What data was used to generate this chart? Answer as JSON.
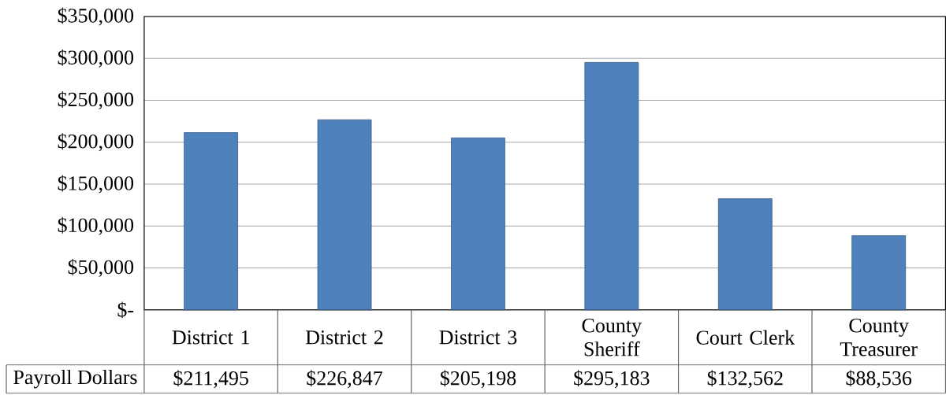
{
  "chart_data": {
    "type": "bar",
    "categories": [
      "District 1",
      "District 2",
      "District 3",
      "County Sheriff",
      "Court Clerk",
      "County Treasurer"
    ],
    "series": [
      {
        "name": "Payroll Dollars",
        "color": "#4f81bd",
        "values": [
          211495,
          226847,
          205198,
          295183,
          132562,
          88536
        ],
        "value_labels": [
          "$211,495",
          "$226,847",
          "$205,198",
          "$295,183",
          "$132,562",
          "$88,536"
        ]
      }
    ],
    "ylim": [
      0,
      350000
    ],
    "yticks": [
      {
        "value": 0,
        "label": "$-"
      },
      {
        "value": 50000,
        "label": "$50,000"
      },
      {
        "value": 100000,
        "label": "$100,000"
      },
      {
        "value": 150000,
        "label": "$150,000"
      },
      {
        "value": 200000,
        "label": "$200,000"
      },
      {
        "value": 250000,
        "label": "$250,000"
      },
      {
        "value": 300000,
        "label": "$300,000"
      },
      {
        "value": 350000,
        "label": "$350,000"
      }
    ],
    "grid": "y"
  }
}
